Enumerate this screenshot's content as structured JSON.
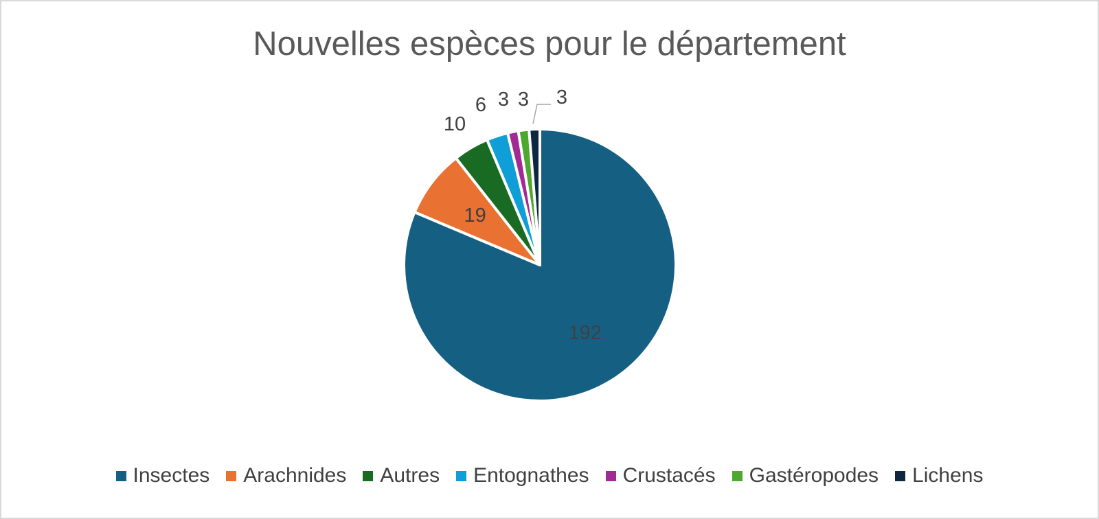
{
  "chart_data": {
    "type": "pie",
    "title": "Nouvelles espèces pour le département",
    "categories": [
      "Insectes",
      "Arachnides",
      "Autres",
      "Entognathes",
      "Crustacés",
      "Gastéropodes",
      "Lichens"
    ],
    "values": [
      192,
      19,
      10,
      6,
      3,
      3,
      3
    ],
    "data_labels": [
      "192",
      "19",
      "10",
      "6",
      "3",
      "3",
      "3"
    ],
    "colors": [
      "#156082",
      "#e97132",
      "#196b24",
      "#0f9ed5",
      "#a02b93",
      "#4ea72e",
      "#0e2841"
    ],
    "start_angle_deg": 0,
    "direction": "clockwise",
    "legend_position": "bottom"
  }
}
